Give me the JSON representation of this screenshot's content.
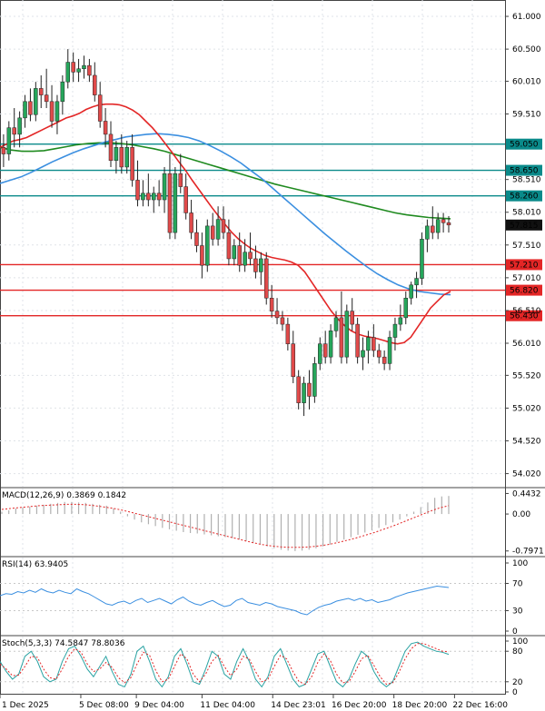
{
  "chart_data": {
    "type": "candlestick",
    "main": {
      "price_ticks": [
        "61.000",
        "60.500",
        "60.010",
        "59.510",
        "58.510",
        "58.010",
        "57.510",
        "57.010",
        "56.510",
        "56.010",
        "55.520",
        "55.020",
        "54.520",
        "54.020"
      ],
      "price_tick_values": [
        61.0,
        60.5,
        60.01,
        59.51,
        58.51,
        58.01,
        57.51,
        57.01,
        56.51,
        56.01,
        55.52,
        55.02,
        54.52,
        54.02
      ],
      "ylim": [
        53.82,
        61.25
      ],
      "levels": [
        {
          "value": 59.05,
          "label": "59.050",
          "color": "#0a8a8a"
        },
        {
          "value": 58.65,
          "label": "58.650",
          "color": "#0a8a8a"
        },
        {
          "value": 58.26,
          "label": "58.260",
          "color": "#0a8a8a"
        },
        {
          "value": 57.21,
          "label": "57.210",
          "color": "#e32626"
        },
        {
          "value": 56.82,
          "label": "56.820",
          "color": "#e32626"
        },
        {
          "value": 56.43,
          "label": "56.430",
          "color": "#e32626"
        }
      ],
      "current": {
        "value": 57.815,
        "label": "57.815"
      },
      "candles": [
        [
          59.3,
          59.5,
          58.9,
          59.0
        ],
        [
          59.0,
          59.2,
          58.7,
          58.9
        ],
        [
          58.9,
          59.4,
          58.8,
          59.3
        ],
        [
          59.3,
          59.6,
          59.0,
          59.2
        ],
        [
          59.2,
          59.55,
          59.0,
          59.45
        ],
        [
          59.45,
          59.8,
          59.3,
          59.7
        ],
        [
          59.7,
          59.9,
          59.4,
          59.5
        ],
        [
          59.5,
          60.0,
          59.4,
          59.9
        ],
        [
          59.9,
          60.1,
          59.6,
          59.8
        ],
        [
          59.8,
          60.2,
          59.6,
          59.7
        ],
        [
          59.7,
          59.95,
          59.3,
          59.4
        ],
        [
          59.4,
          59.8,
          59.2,
          59.7
        ],
        [
          59.7,
          60.1,
          59.5,
          60.0
        ],
        [
          60.0,
          60.5,
          59.9,
          60.3
        ],
        [
          60.3,
          60.45,
          60.0,
          60.15
        ],
        [
          60.15,
          60.35,
          60.0,
          60.2
        ],
        [
          60.2,
          60.4,
          60.05,
          60.25
        ],
        [
          60.25,
          60.35,
          60.0,
          60.1
        ],
        [
          60.1,
          60.3,
          59.7,
          59.8
        ],
        [
          59.8,
          60.0,
          59.3,
          59.4
        ],
        [
          59.4,
          59.6,
          59.0,
          59.2
        ],
        [
          59.2,
          59.4,
          58.7,
          58.8
        ],
        [
          58.8,
          59.1,
          58.6,
          59.0
        ],
        [
          59.0,
          59.2,
          58.6,
          58.7
        ],
        [
          58.7,
          59.1,
          58.6,
          59.0
        ],
        [
          59.0,
          59.2,
          58.4,
          58.5
        ],
        [
          58.5,
          58.8,
          58.1,
          58.2
        ],
        [
          58.2,
          58.5,
          58.1,
          58.3
        ],
        [
          58.3,
          58.6,
          58.1,
          58.2
        ],
        [
          58.2,
          58.4,
          58.0,
          58.3
        ],
        [
          58.3,
          58.5,
          58.1,
          58.2
        ],
        [
          58.2,
          58.7,
          58.0,
          58.6
        ],
        [
          58.6,
          58.9,
          57.6,
          57.7
        ],
        [
          57.7,
          58.7,
          57.6,
          58.6
        ],
        [
          58.6,
          58.9,
          58.3,
          58.4
        ],
        [
          58.4,
          58.6,
          57.9,
          58.0
        ],
        [
          58.0,
          58.2,
          57.6,
          57.7
        ],
        [
          57.7,
          57.9,
          57.4,
          57.5
        ],
        [
          57.5,
          57.7,
          57.0,
          57.2
        ],
        [
          57.2,
          57.9,
          57.1,
          57.8
        ],
        [
          57.8,
          58.0,
          57.5,
          57.6
        ],
        [
          57.6,
          58.1,
          57.5,
          57.9
        ],
        [
          57.9,
          58.1,
          57.6,
          57.7
        ],
        [
          57.7,
          57.9,
          57.2,
          57.3
        ],
        [
          57.3,
          57.6,
          57.2,
          57.5
        ],
        [
          57.5,
          57.7,
          57.1,
          57.2
        ],
        [
          57.2,
          57.6,
          57.1,
          57.4
        ],
        [
          57.4,
          57.7,
          57.2,
          57.3
        ],
        [
          57.3,
          57.5,
          57.0,
          57.1
        ],
        [
          57.1,
          57.4,
          56.9,
          57.3
        ],
        [
          57.3,
          57.4,
          56.6,
          56.7
        ],
        [
          56.7,
          56.9,
          56.4,
          56.5
        ],
        [
          56.5,
          56.7,
          56.3,
          56.4
        ],
        [
          56.4,
          56.5,
          56.2,
          56.3
        ],
        [
          56.3,
          56.4,
          55.9,
          56.0
        ],
        [
          56.0,
          56.2,
          55.4,
          55.5
        ],
        [
          55.5,
          55.6,
          55.0,
          55.1
        ],
        [
          55.1,
          55.5,
          54.9,
          55.4
        ],
        [
          55.4,
          55.6,
          55.0,
          55.2
        ],
        [
          55.2,
          55.8,
          55.1,
          55.7
        ],
        [
          55.7,
          56.1,
          55.6,
          56.0
        ],
        [
          56.0,
          56.2,
          55.7,
          55.8
        ],
        [
          55.8,
          56.3,
          55.7,
          56.2
        ],
        [
          56.2,
          56.5,
          56.1,
          56.4
        ],
        [
          56.4,
          56.8,
          55.7,
          55.8
        ],
        [
          55.8,
          56.6,
          55.7,
          56.5
        ],
        [
          56.5,
          56.7,
          56.2,
          56.3
        ],
        [
          56.3,
          56.4,
          55.7,
          55.8
        ],
        [
          55.8,
          56.1,
          55.6,
          55.9
        ],
        [
          55.9,
          56.2,
          55.7,
          56.1
        ],
        [
          56.1,
          56.3,
          55.8,
          55.9
        ],
        [
          55.9,
          56.0,
          55.7,
          55.8
        ],
        [
          55.8,
          55.9,
          55.6,
          55.7
        ],
        [
          55.7,
          56.2,
          55.6,
          56.1
        ],
        [
          56.1,
          56.4,
          55.9,
          56.3
        ],
        [
          56.3,
          56.6,
          56.2,
          56.4
        ],
        [
          56.4,
          56.8,
          56.3,
          56.7
        ],
        [
          56.7,
          56.95,
          56.6,
          56.9
        ],
        [
          56.9,
          57.1,
          56.7,
          57.0
        ],
        [
          57.0,
          57.7,
          56.9,
          57.6
        ],
        [
          57.6,
          57.9,
          57.4,
          57.8
        ],
        [
          57.8,
          58.1,
          57.6,
          57.7
        ],
        [
          57.7,
          58.0,
          57.6,
          57.9
        ],
        [
          57.9,
          58.0,
          57.7,
          57.85
        ],
        [
          57.85,
          57.95,
          57.7,
          57.815
        ]
      ],
      "ma_red": [
        59.0,
        59.05,
        59.1,
        59.12,
        59.15,
        59.2,
        59.25,
        59.3,
        59.35,
        59.4,
        59.45,
        59.48,
        59.52,
        59.58,
        59.62,
        59.65,
        59.66,
        59.66,
        59.65,
        59.62,
        59.57,
        59.5,
        59.4,
        59.3,
        59.18,
        59.05,
        58.92,
        58.78,
        58.65,
        58.5,
        58.36,
        58.22,
        58.08,
        57.95,
        57.82,
        57.7,
        57.6,
        57.52,
        57.45,
        57.4,
        57.35,
        57.32,
        57.3,
        57.28,
        57.25,
        57.2,
        57.1,
        56.95,
        56.8,
        56.65,
        56.5,
        56.38,
        56.28,
        56.2,
        56.15,
        56.12,
        56.1,
        56.08,
        56.05,
        56.02,
        56.0,
        56.02,
        56.1,
        56.25,
        56.4,
        56.55,
        56.65,
        56.75,
        56.8
      ],
      "ma_blue": [
        58.45,
        58.5,
        58.55,
        58.62,
        58.7,
        58.78,
        58.85,
        58.92,
        58.98,
        59.03,
        59.08,
        59.12,
        59.16,
        59.18,
        59.2,
        59.21,
        59.2,
        59.18,
        59.15,
        59.1,
        59.03,
        58.95,
        58.86,
        58.76,
        58.64,
        58.52,
        58.38,
        58.24,
        58.1,
        57.96,
        57.82,
        57.68,
        57.55,
        57.42,
        57.3,
        57.18,
        57.07,
        56.98,
        56.9,
        56.84,
        56.8,
        56.78,
        56.76,
        56.75
      ],
      "ma_green": [
        59.0,
        58.96,
        58.94,
        58.94,
        58.95,
        58.98,
        59.01,
        59.04,
        59.06,
        59.07,
        59.07,
        59.06,
        59.04,
        59.01,
        58.98,
        58.94,
        58.89,
        58.84,
        58.79,
        58.74,
        58.69,
        58.64,
        58.59,
        58.54,
        58.49,
        58.44,
        58.4,
        58.36,
        58.32,
        58.28,
        58.24,
        58.2,
        58.16,
        58.12,
        58.08,
        58.04,
        58.0,
        57.97,
        57.95,
        57.93,
        57.92,
        57.91
      ]
    },
    "macd": {
      "label": "MACD(12,26,9) 0.3869 0.1842",
      "ticks": [
        "0.4432",
        "0.00",
        "-0.7971"
      ],
      "tick_values": [
        0.4432,
        0.0,
        -0.7971
      ],
      "ylim": [
        -0.9,
        0.55
      ],
      "hist": [
        0.05,
        0.08,
        0.12,
        0.14,
        0.16,
        0.18,
        0.2,
        0.22,
        0.24,
        0.26,
        0.26,
        0.25,
        0.24,
        0.22,
        0.2,
        0.18,
        0.12,
        0.05,
        -0.05,
        -0.12,
        -0.18,
        -0.22,
        -0.26,
        -0.3,
        -0.33,
        -0.36,
        -0.39,
        -0.41,
        -0.42,
        -0.44,
        -0.46,
        -0.48,
        -0.5,
        -0.52,
        -0.55,
        -0.58,
        -0.62,
        -0.66,
        -0.7,
        -0.74,
        -0.77,
        -0.79,
        -0.8,
        -0.79,
        -0.77,
        -0.74,
        -0.7,
        -0.66,
        -0.6,
        -0.55,
        -0.5,
        -0.45,
        -0.4,
        -0.35,
        -0.3,
        -0.24,
        -0.18,
        -0.12,
        -0.05,
        0.05,
        0.15,
        0.25,
        0.35,
        0.38,
        0.39
      ],
      "signal": [
        0.1,
        0.12,
        0.14,
        0.16,
        0.18,
        0.19,
        0.2,
        0.21,
        0.21,
        0.2,
        0.18,
        0.15,
        0.12,
        0.08,
        0.03,
        -0.02,
        -0.07,
        -0.12,
        -0.17,
        -0.22,
        -0.27,
        -0.32,
        -0.37,
        -0.42,
        -0.47,
        -0.52,
        -0.57,
        -0.62,
        -0.66,
        -0.69,
        -0.71,
        -0.72,
        -0.72,
        -0.71,
        -0.69,
        -0.66,
        -0.62,
        -0.57,
        -0.52,
        -0.46,
        -0.4,
        -0.33,
        -0.26,
        -0.18,
        -0.1,
        -0.02,
        0.06,
        0.13,
        0.18
      ]
    },
    "rsi": {
      "label": "RSI(14) 63.9405",
      "ticks": [
        "100",
        "70",
        "30",
        "0"
      ],
      "tick_values": [
        100,
        70,
        30,
        0
      ],
      "ylim": [
        0,
        100
      ],
      "values": [
        52,
        55,
        54,
        58,
        56,
        60,
        57,
        62,
        58,
        56,
        60,
        57,
        55,
        62,
        58,
        55,
        50,
        45,
        40,
        38,
        42,
        44,
        40,
        45,
        48,
        42,
        45,
        48,
        44,
        40,
        46,
        50,
        44,
        40,
        38,
        42,
        45,
        40,
        36,
        38,
        45,
        48,
        42,
        40,
        38,
        42,
        40,
        36,
        34,
        32,
        30,
        26,
        24,
        30,
        35,
        38,
        40,
        44,
        46,
        48,
        45,
        48,
        44,
        46,
        42,
        44,
        46,
        50,
        53,
        56,
        58,
        60,
        62,
        64,
        66,
        65,
        64
      ]
    },
    "stoch": {
      "label": "Stoch(5,3,3) 74.5847 78.8036",
      "ticks": [
        "100",
        "80",
        "20",
        "0"
      ],
      "tick_values": [
        100,
        80,
        20,
        0
      ],
      "ylim": [
        0,
        100
      ],
      "k": [
        60,
        40,
        25,
        35,
        70,
        80,
        60,
        30,
        20,
        25,
        60,
        85,
        90,
        70,
        45,
        30,
        50,
        70,
        40,
        15,
        10,
        35,
        80,
        90,
        60,
        25,
        10,
        30,
        70,
        85,
        55,
        20,
        15,
        45,
        80,
        70,
        35,
        25,
        60,
        85,
        60,
        25,
        10,
        30,
        70,
        85,
        55,
        25,
        10,
        15,
        45,
        75,
        80,
        50,
        20,
        10,
        25,
        55,
        80,
        70,
        40,
        20,
        10,
        20,
        50,
        80,
        95,
        98,
        90,
        85,
        80,
        78,
        74
      ],
      "d": [
        55,
        45,
        32,
        33,
        50,
        70,
        68,
        45,
        28,
        25,
        45,
        70,
        85,
        78,
        55,
        40,
        45,
        58,
        48,
        28,
        18,
        28,
        55,
        78,
        72,
        42,
        20,
        25,
        50,
        75,
        65,
        35,
        20,
        35,
        60,
        72,
        50,
        32,
        45,
        70,
        65,
        40,
        20,
        25,
        50,
        72,
        65,
        40,
        20,
        15,
        30,
        58,
        75,
        62,
        35,
        18,
        20,
        40,
        65,
        72,
        52,
        30,
        15,
        18,
        38,
        65,
        85,
        95,
        95,
        90,
        85,
        80,
        79
      ]
    },
    "x_labels": [
      "1 Dec 2025",
      "5 Dec 08:00",
      "9 Dec 04:00",
      "11 Dec 04:00",
      "14 Dec 23:01",
      "16 Dec 20:00",
      "18 Dec 20:00",
      "22 Dec 16:00"
    ],
    "x_label_positions": [
      0.0,
      0.16,
      0.27,
      0.4,
      0.54,
      0.66,
      0.78,
      0.9
    ]
  },
  "colors": {
    "up": "#26a65b",
    "down": "#e04a4a",
    "ma_red": "#e32626",
    "ma_blue": "#3b8fe0",
    "ma_green": "#1f8a1f",
    "grid": "#dfe3e8",
    "rsi": "#3b8fe0",
    "stoch_k": "#2aa3a3",
    "stoch_d": "#e32626",
    "signal": "#e32626",
    "hist": "#b0b0b0"
  }
}
